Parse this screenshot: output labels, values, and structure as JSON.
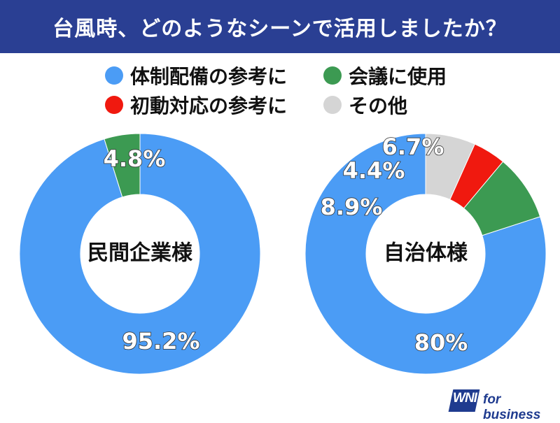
{
  "title": "台風時、どのようなシーンで活用しましたか？",
  "legend": {
    "items": [
      {
        "label": "体制配備の参考に",
        "color": "#4b9cf5"
      },
      {
        "label": "会議に使用",
        "color": "#3c9a52"
      },
      {
        "label": "初動対応の参考に",
        "color": "#f0190f"
      },
      {
        "label": "その他",
        "color": "#d5d5d5"
      }
    ]
  },
  "chart_data": [
    {
      "type": "pie",
      "center_label": "民間企業様",
      "slices": [
        {
          "name": "体制配備の参考に",
          "value": 95.2,
          "label": "95.2%",
          "color": "#4b9cf5"
        },
        {
          "name": "会議に使用",
          "value": 4.8,
          "label": "4.8%",
          "color": "#3c9a52"
        }
      ]
    },
    {
      "type": "pie",
      "center_label": "自治体様",
      "slices": [
        {
          "name": "体制配備の参考に",
          "value": 80,
          "label": "80%",
          "color": "#4b9cf5"
        },
        {
          "name": "会議に使用",
          "value": 8.9,
          "label": "8.9%",
          "color": "#3c9a52"
        },
        {
          "name": "初動対応の参考に",
          "value": 4.4,
          "label": "4.4%",
          "color": "#f0190f"
        },
        {
          "name": "その他",
          "value": 6.7,
          "label": "6.7%",
          "color": "#d5d5d5"
        }
      ]
    }
  ],
  "logo": {
    "mark": "WNI",
    "text": "for business"
  }
}
